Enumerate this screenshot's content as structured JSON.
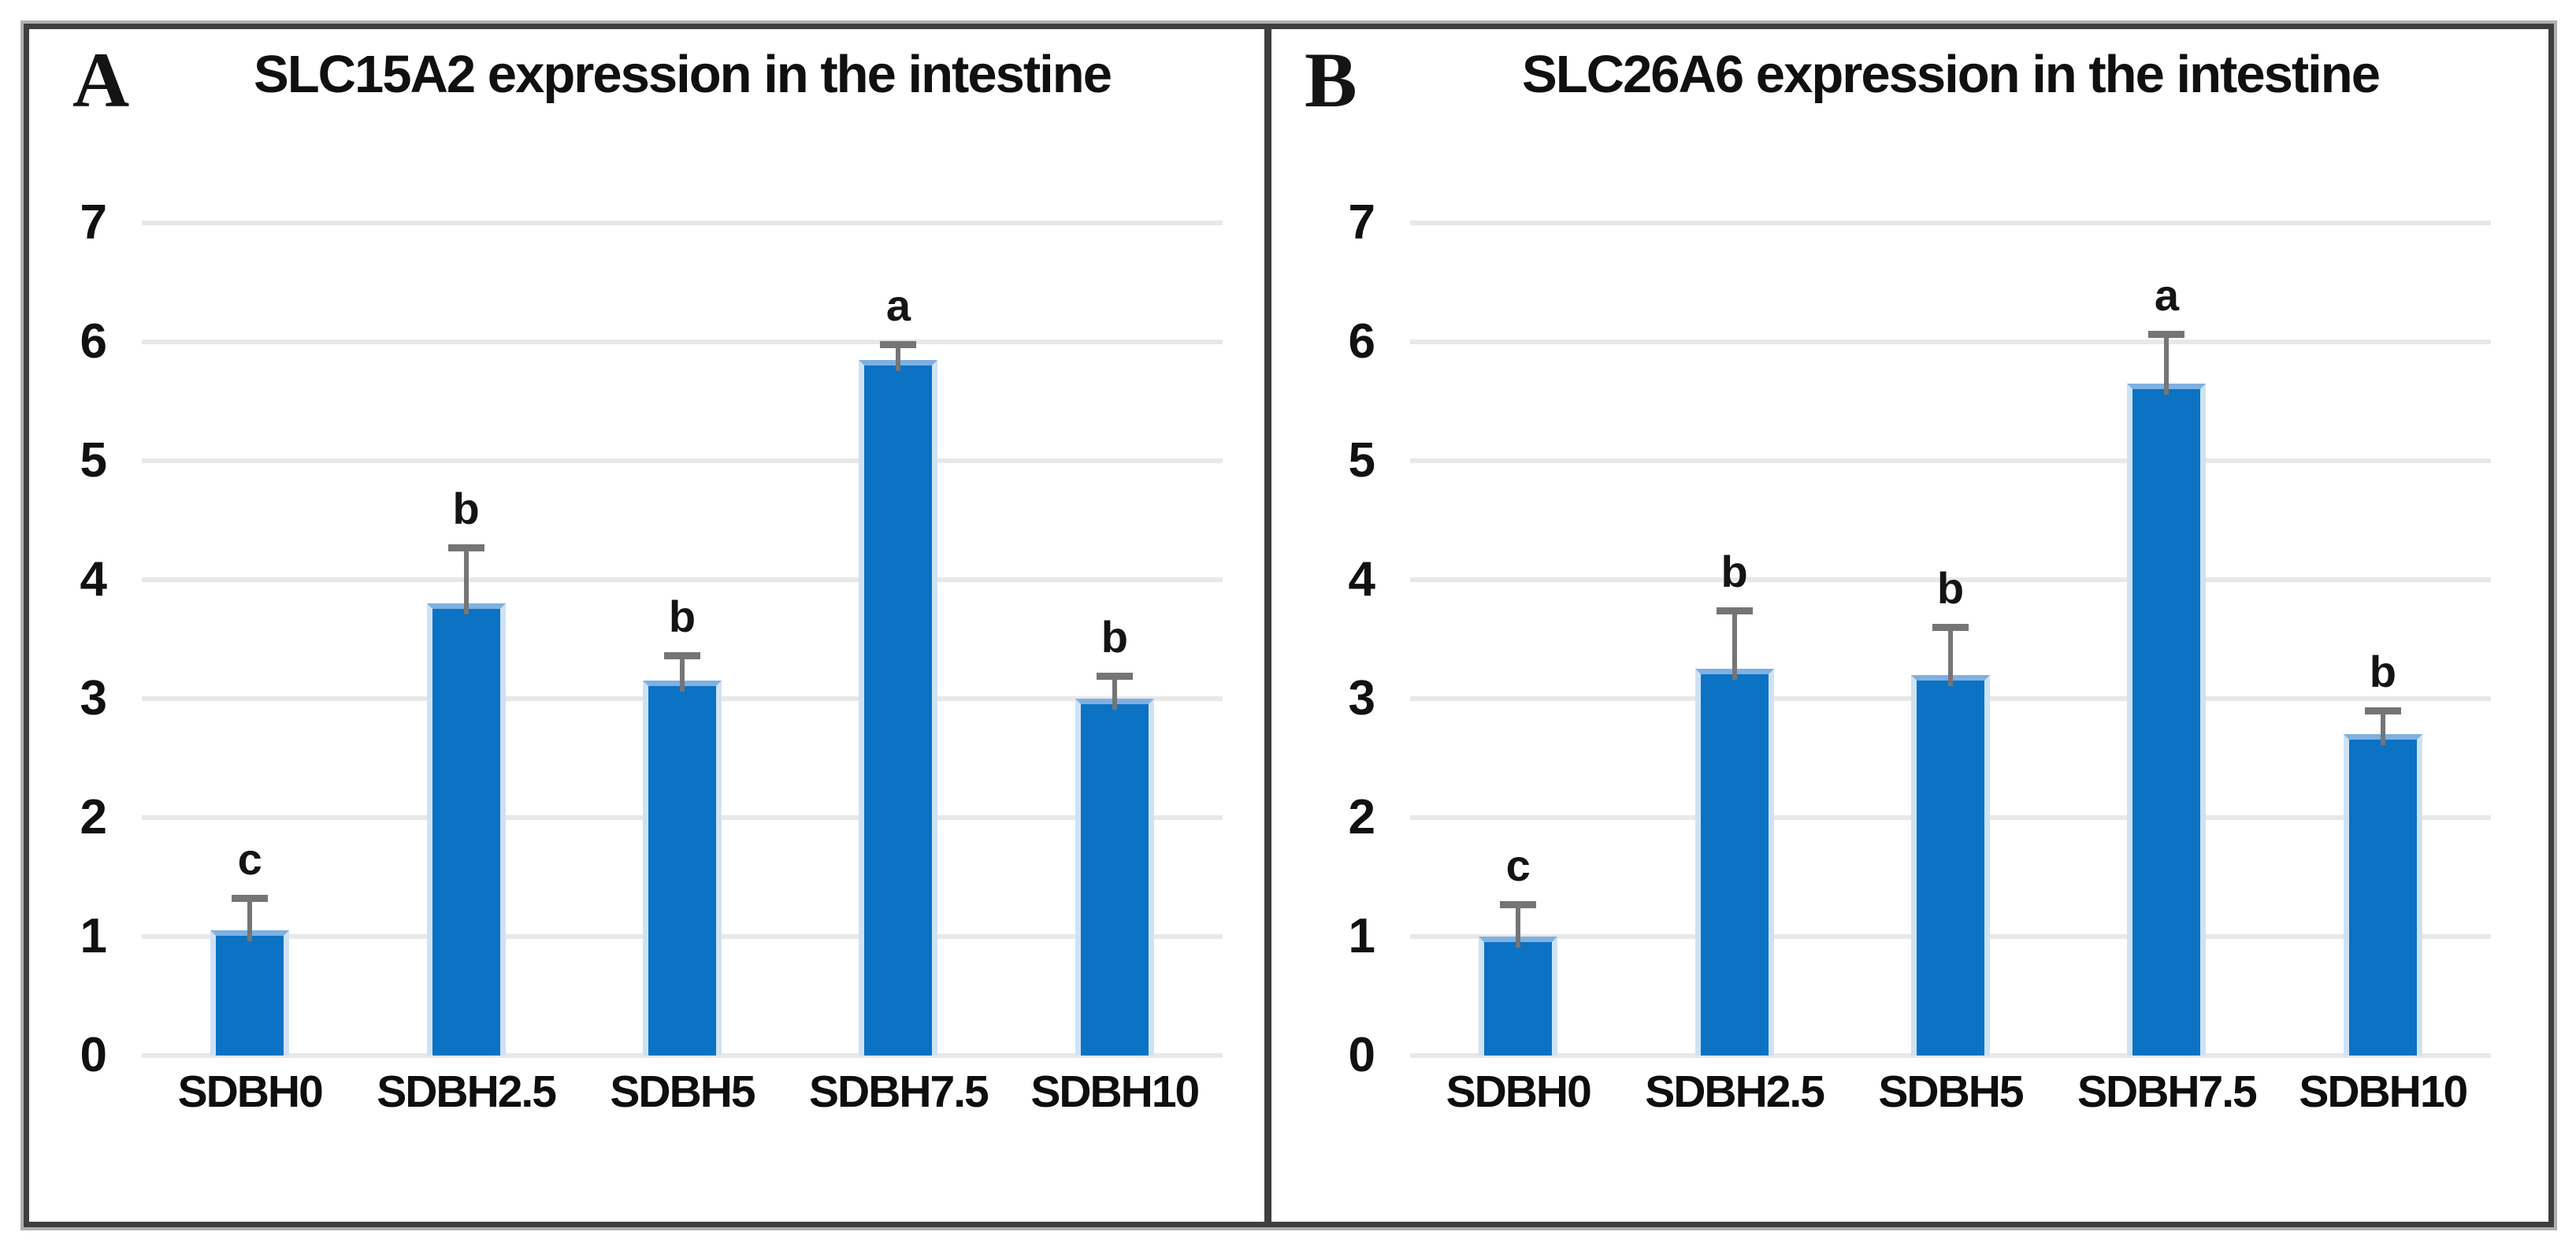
{
  "chart_data": [
    {
      "type": "bar",
      "panel_label": "A",
      "title": "SLC15A2 expression in the intestine",
      "categories": [
        "SDBH0",
        "SDBH2.5",
        "SDBH5",
        "SDBH7.5",
        "SDBH10"
      ],
      "values": [
        1.05,
        3.8,
        3.15,
        5.85,
        3.0
      ],
      "errors_plus": [
        0.24,
        0.44,
        0.18,
        0.1,
        0.16
      ],
      "sig_letters": [
        "c",
        "b",
        "b",
        "a",
        "b"
      ],
      "xlabel": "",
      "ylabel": "",
      "ylim": [
        0,
        7
      ],
      "yticks": [
        0,
        1,
        2,
        3,
        4,
        5,
        6,
        7
      ],
      "grid": true,
      "legend_position": "none"
    },
    {
      "type": "bar",
      "panel_label": "B",
      "title": "SLC26A6 expression in the intestine",
      "categories": [
        "SDBH0",
        "SDBH2.5",
        "SDBH5",
        "SDBH7.5",
        "SDBH10"
      ],
      "values": [
        1.0,
        3.25,
        3.2,
        5.65,
        2.7
      ],
      "errors_plus": [
        0.24,
        0.46,
        0.37,
        0.38,
        0.17
      ],
      "sig_letters": [
        "c",
        "b",
        "b",
        "a",
        "b"
      ],
      "xlabel": "",
      "ylabel": "",
      "ylim": [
        0,
        7
      ],
      "yticks": [
        0,
        1,
        2,
        3,
        4,
        5,
        6,
        7
      ],
      "grid": true,
      "legend_position": "none"
    }
  ],
  "colors": {
    "bar_fill": "#0b72c4",
    "bar_edge_light": "#cfe2f4",
    "gridline": "#e8e8e8",
    "error_bar": "#757575",
    "text": "#111111",
    "frame_border": "#3e3e3e",
    "frame_shadow": "#b0b0b0",
    "background": "#ffffff"
  }
}
